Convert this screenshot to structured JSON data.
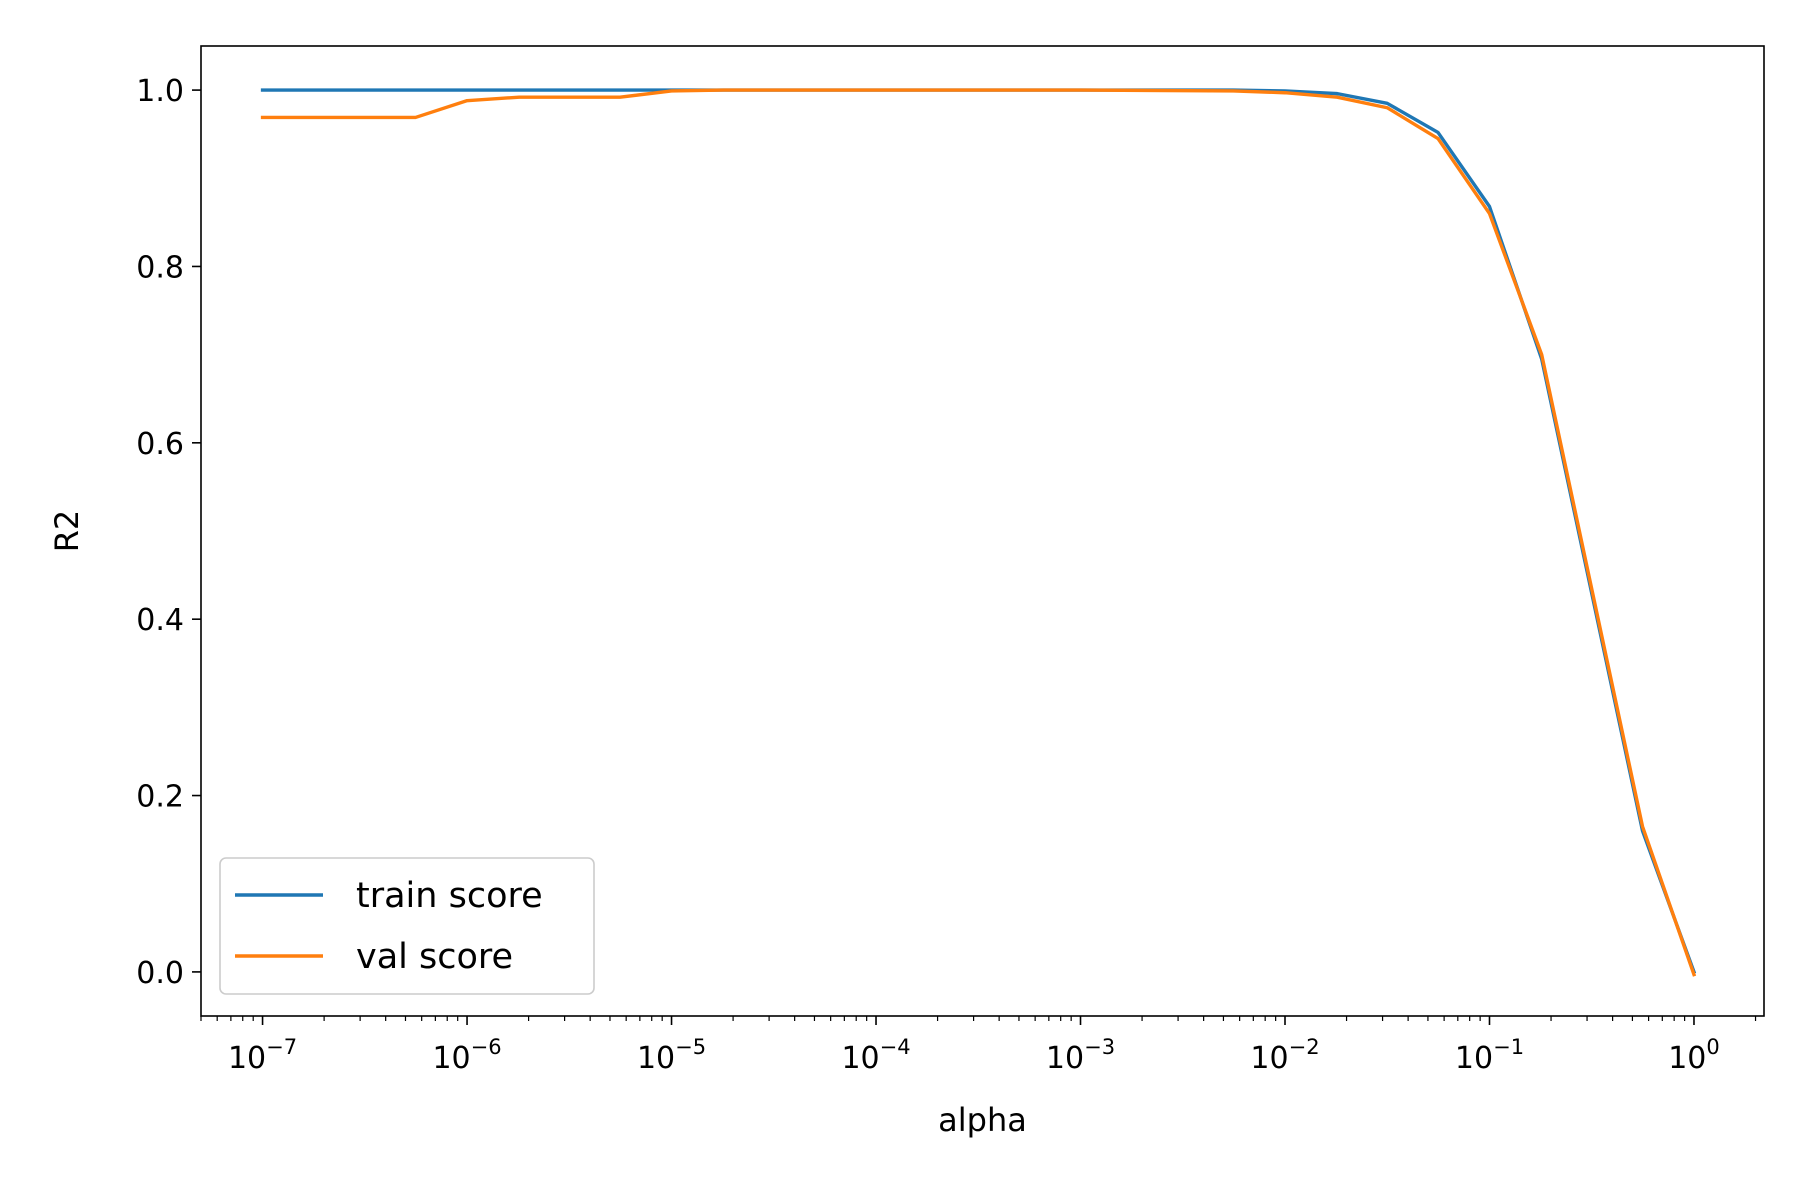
{
  "chart_data": {
    "type": "line",
    "x_scale": "log",
    "xlabel": "alpha",
    "ylabel": "R2",
    "x": [
      1e-07,
      5.6e-07,
      1e-06,
      1.8e-06,
      5.6e-06,
      1e-05,
      1.8e-05,
      0.0001,
      0.001,
      0.0056,
      0.01,
      0.018,
      0.0316,
      0.056,
      0.1,
      0.18,
      0.56,
      1
    ],
    "x_tick_labels": [
      {
        "base": "10",
        "exp": "−7"
      },
      {
        "base": "10",
        "exp": "−6"
      },
      {
        "base": "10",
        "exp": "−5"
      },
      {
        "base": "10",
        "exp": "−4"
      },
      {
        "base": "10",
        "exp": "−3"
      },
      {
        "base": "10",
        "exp": "−2"
      },
      {
        "base": "10",
        "exp": "−1"
      },
      {
        "base": "10",
        "exp": "0"
      }
    ],
    "x_tick_values": [
      1e-07,
      1e-06,
      1e-05,
      0.0001,
      0.001,
      0.01,
      0.1,
      1
    ],
    "y_tick_labels": [
      "0.0",
      "0.2",
      "0.4",
      "0.6",
      "0.8",
      "1.0"
    ],
    "y_tick_values": [
      0.0,
      0.2,
      0.4,
      0.6,
      0.8,
      1.0
    ],
    "xlim": [
      5e-08,
      2.2
    ],
    "ylim": [
      -0.05,
      1.05
    ],
    "grid": false,
    "legend_position": "lower-left",
    "series": [
      {
        "name": "train score",
        "color": "#1f77b4",
        "values": [
          1.0,
          1.0,
          1.0,
          1.0,
          1.0,
          1.0,
          1.0,
          1.0,
          1.0,
          1.0,
          0.999,
          0.996,
          0.985,
          0.952,
          0.868,
          0.695,
          0.16,
          0.0
        ]
      },
      {
        "name": "val score",
        "color": "#ff7f0e",
        "values": [
          0.969,
          0.969,
          0.988,
          0.992,
          0.992,
          0.999,
          1.0,
          1.0,
          1.0,
          0.999,
          0.997,
          0.992,
          0.98,
          0.945,
          0.86,
          0.7,
          0.165,
          -0.003
        ]
      }
    ]
  }
}
